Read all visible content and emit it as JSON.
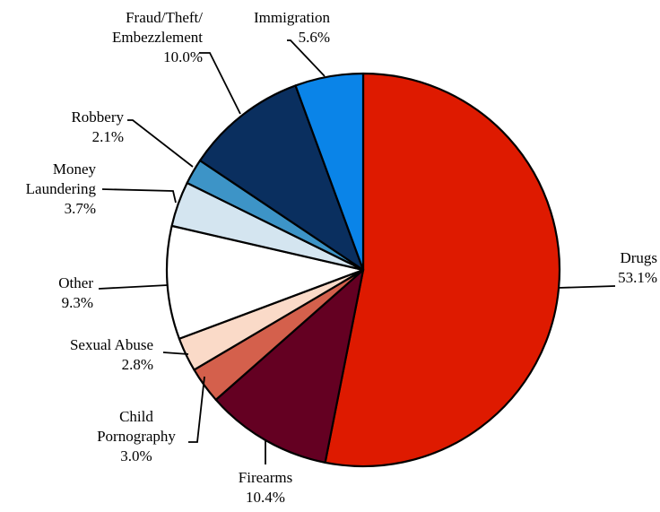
{
  "chart_data": {
    "type": "pie",
    "title": "",
    "slices": [
      {
        "name": "Drugs",
        "label_lines": [
          "Drugs"
        ],
        "value": 53.1,
        "value_label": "53.1%",
        "color": "#DE1A00"
      },
      {
        "name": "Firearms",
        "label_lines": [
          "Firearms"
        ],
        "value": 10.4,
        "value_label": "10.4%",
        "color": "#640022"
      },
      {
        "name": "Child Pornography",
        "label_lines": [
          "Child",
          "Pornography"
        ],
        "value": 3.0,
        "value_label": "3.0%",
        "color": "#D4604C"
      },
      {
        "name": "Sexual Abuse",
        "label_lines": [
          "Sexual Abuse"
        ],
        "value": 2.8,
        "value_label": "2.8%",
        "color": "#FADAC8"
      },
      {
        "name": "Other",
        "label_lines": [
          "Other"
        ],
        "value": 9.3,
        "value_label": "9.3%",
        "color": "#FFFFFF"
      },
      {
        "name": "Money Laundering",
        "label_lines": [
          "Money",
          "Laundering"
        ],
        "value": 3.7,
        "value_label": "3.7%",
        "color": "#D4E5F0"
      },
      {
        "name": "Robbery",
        "label_lines": [
          "Robbery"
        ],
        "value": 2.1,
        "value_label": "2.1%",
        "color": "#3D94C7"
      },
      {
        "name": "Fraud/Theft/Embezzlement",
        "label_lines": [
          "Fraud/Theft/",
          "Embezzlement"
        ],
        "value": 10.0,
        "value_label": "10.0%",
        "color": "#0A2F5F"
      },
      {
        "name": "Immigration",
        "label_lines": [
          "Immigration"
        ],
        "value": 5.6,
        "value_label": "5.6%",
        "color": "#0A84E8"
      }
    ],
    "start_angle_deg": 0,
    "direction": "clockwise",
    "legend": "none",
    "labels": "outside with leader lines"
  }
}
